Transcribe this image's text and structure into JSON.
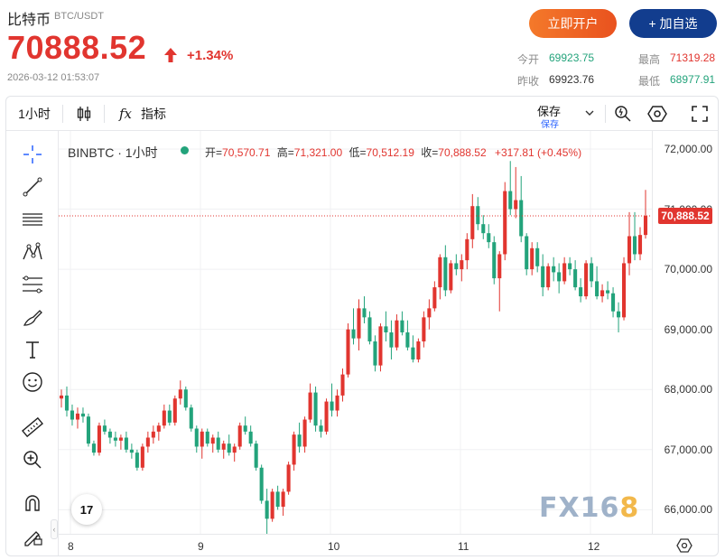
{
  "header": {
    "name": "比特币",
    "pair": "BTC/USDT",
    "price": "70888.52",
    "change": "+1.34%",
    "timestamp": "2026-03-12 01:53:07",
    "btn_open": "立即开户",
    "btn_add": "+ 加自选",
    "stats": {
      "open_label": "今开",
      "open": "69923.75",
      "high_label": "最高",
      "high": "71319.28",
      "prev_label": "昨收",
      "prev": "69923.76",
      "low_label": "最低",
      "low": "68977.91"
    }
  },
  "toolbar": {
    "interval": "1小时",
    "indicators_label": "指标",
    "fx_label": "fx",
    "save_label": "保存",
    "save_sub": "保存"
  },
  "legend": {
    "symbol": "BINBTC · 1小时",
    "open_label": "开=",
    "open": "70,570.71",
    "high_label": "高=",
    "high": "71,321.00",
    "low_label": "低=",
    "low": "70,512.19",
    "close_label": "收=",
    "close": "70,888.52",
    "change": "+317.81 (+0.45%)"
  },
  "axes": {
    "y_ticks": [
      "72,000.00",
      "71,000.00",
      "70,000.00",
      "69,000.00",
      "68,000.00",
      "67,000.00",
      "66,000.00"
    ],
    "x_ticks": [
      "8",
      "9",
      "10",
      "11",
      "12"
    ],
    "last_price_tag": "70,888.52"
  },
  "watermark": {
    "text_a": "FX16",
    "text_b": "8"
  },
  "tv_logo": "17",
  "colors": {
    "up": "#e1352f",
    "down": "#23a37b",
    "accent": "#123d8e",
    "cta": "#f4792a"
  },
  "chart_data": {
    "type": "candlestick",
    "ylim": [
      65600,
      72300
    ],
    "x_ticks": [
      "8",
      "9",
      "10",
      "11",
      "12"
    ],
    "y_ticks": [
      72000,
      71000,
      70000,
      69000,
      68000,
      67000,
      66000
    ],
    "last_price": 70888.52,
    "candles": [
      [
        67850,
        68000,
        67700,
        67900
      ],
      [
        67900,
        68050,
        67550,
        67650
      ],
      [
        67650,
        67750,
        67400,
        67500
      ],
      [
        67500,
        67700,
        67350,
        67600
      ],
      [
        67600,
        67700,
        67450,
        67550
      ],
      [
        67550,
        67600,
        67050,
        67100
      ],
      [
        67100,
        67150,
        66900,
        66950
      ],
      [
        66950,
        67450,
        66900,
        67400
      ],
      [
        67400,
        67500,
        67250,
        67300
      ],
      [
        67300,
        67350,
        67100,
        67200
      ],
      [
        67200,
        67300,
        67050,
        67150
      ],
      [
        67150,
        67250,
        67000,
        67200
      ],
      [
        67200,
        67300,
        66950,
        67000
      ],
      [
        67000,
        67100,
        66850,
        66950
      ],
      [
        66950,
        67000,
        66650,
        66700
      ],
      [
        66700,
        67100,
        66650,
        67050
      ],
      [
        67050,
        67300,
        66950,
        67200
      ],
      [
        67200,
        67400,
        67100,
        67300
      ],
      [
        67300,
        67450,
        67150,
        67400
      ],
      [
        67400,
        67750,
        67350,
        67650
      ],
      [
        67650,
        67750,
        67400,
        67450
      ],
      [
        67450,
        67900,
        67400,
        67850
      ],
      [
        67850,
        68150,
        67750,
        68000
      ],
      [
        68000,
        68050,
        67650,
        67700
      ],
      [
        67700,
        67750,
        67300,
        67350
      ],
      [
        67350,
        67400,
        66950,
        67050
      ],
      [
        67050,
        67350,
        66850,
        67300
      ],
      [
        67300,
        67350,
        67050,
        67100
      ],
      [
        67100,
        67250,
        66950,
        67200
      ],
      [
        67200,
        67300,
        66950,
        67000
      ],
      [
        67000,
        67150,
        66850,
        67100
      ],
      [
        67100,
        67250,
        66900,
        66950
      ],
      [
        66950,
        67100,
        66800,
        67050
      ],
      [
        67050,
        67450,
        67000,
        67400
      ],
      [
        67400,
        67550,
        67250,
        67300
      ],
      [
        67300,
        67400,
        67050,
        67100
      ],
      [
        67100,
        67150,
        66650,
        66700
      ],
      [
        66700,
        66750,
        66100,
        66150
      ],
      [
        66150,
        66350,
        65600,
        65850
      ],
      [
        65850,
        66350,
        65800,
        66300
      ],
      [
        66300,
        66400,
        66000,
        66050
      ],
      [
        66050,
        66350,
        65900,
        66300
      ],
      [
        66300,
        66800,
        66250,
        66750
      ],
      [
        66750,
        67300,
        66650,
        67250
      ],
      [
        67250,
        67450,
        66950,
        67050
      ],
      [
        67050,
        67550,
        66950,
        67500
      ],
      [
        67500,
        68100,
        67450,
        67950
      ],
      [
        67950,
        68050,
        67300,
        67400
      ],
      [
        67400,
        67500,
        67200,
        67300
      ],
      [
        67300,
        67850,
        67250,
        67800
      ],
      [
        67800,
        68100,
        67550,
        67650
      ],
      [
        67650,
        68000,
        67550,
        67900
      ],
      [
        67900,
        68350,
        67800,
        68250
      ],
      [
        68250,
        69100,
        68200,
        69000
      ],
      [
        69000,
        69350,
        68750,
        68850
      ],
      [
        68850,
        69500,
        68650,
        69350
      ],
      [
        69350,
        69550,
        69100,
        69200
      ],
      [
        69200,
        69300,
        68750,
        68800
      ],
      [
        68800,
        68900,
        68300,
        68400
      ],
      [
        68400,
        69100,
        68300,
        69050
      ],
      [
        69050,
        69300,
        68800,
        68950
      ],
      [
        68950,
        69150,
        68500,
        68700
      ],
      [
        68700,
        69250,
        68650,
        69150
      ],
      [
        69150,
        69300,
        68900,
        68950
      ],
      [
        68950,
        69150,
        68650,
        68700
      ],
      [
        68700,
        68900,
        68450,
        68500
      ],
      [
        68500,
        68850,
        68450,
        68800
      ],
      [
        68800,
        69300,
        68700,
        69200
      ],
      [
        69200,
        69500,
        69000,
        69350
      ],
      [
        69350,
        69800,
        69300,
        69700
      ],
      [
        69700,
        70250,
        69500,
        70200
      ],
      [
        70200,
        70400,
        69550,
        69650
      ],
      [
        69650,
        70150,
        69600,
        70100
      ],
      [
        70100,
        70250,
        69900,
        70000
      ],
      [
        70000,
        70250,
        69800,
        70150
      ],
      [
        70150,
        70600,
        70000,
        70500
      ],
      [
        70500,
        71250,
        70350,
        71050
      ],
      [
        71050,
        71200,
        70650,
        70750
      ],
      [
        70750,
        70900,
        70500,
        70600
      ],
      [
        70600,
        70750,
        70350,
        70450
      ],
      [
        70450,
        70550,
        69750,
        69850
      ],
      [
        69850,
        70300,
        69300,
        70250
      ],
      [
        70250,
        71450,
        70150,
        71300
      ],
      [
        71300,
        71800,
        70900,
        71000
      ],
      [
        71000,
        71700,
        70850,
        71150
      ],
      [
        71150,
        71550,
        70450,
        70550
      ],
      [
        70550,
        70600,
        69900,
        70000
      ],
      [
        70000,
        70450,
        69900,
        70350
      ],
      [
        70350,
        70450,
        69950,
        70050
      ],
      [
        70050,
        70250,
        69550,
        69700
      ],
      [
        69700,
        70100,
        69650,
        70050
      ],
      [
        70050,
        70200,
        69800,
        69950
      ],
      [
        69950,
        70100,
        69600,
        69800
      ],
      [
        69800,
        70200,
        69750,
        70100
      ],
      [
        70100,
        70200,
        69900,
        70000
      ],
      [
        70000,
        70150,
        69650,
        69700
      ],
      [
        69700,
        69850,
        69450,
        69550
      ],
      [
        69550,
        70150,
        69500,
        70100
      ],
      [
        70100,
        70200,
        69700,
        69800
      ],
      [
        69800,
        70050,
        69500,
        69550
      ],
      [
        69550,
        69750,
        69450,
        69650
      ],
      [
        69650,
        69800,
        69500,
        69600
      ],
      [
        69600,
        69700,
        69200,
        69300
      ],
      [
        69300,
        69450,
        68950,
        69200
      ],
      [
        69200,
        70200,
        69150,
        70100
      ],
      [
        70100,
        70950,
        69900,
        70550
      ],
      [
        70550,
        70950,
        70150,
        70250
      ],
      [
        70250,
        70700,
        70150,
        70570
      ],
      [
        70570,
        71320,
        70510,
        70890
      ]
    ]
  }
}
